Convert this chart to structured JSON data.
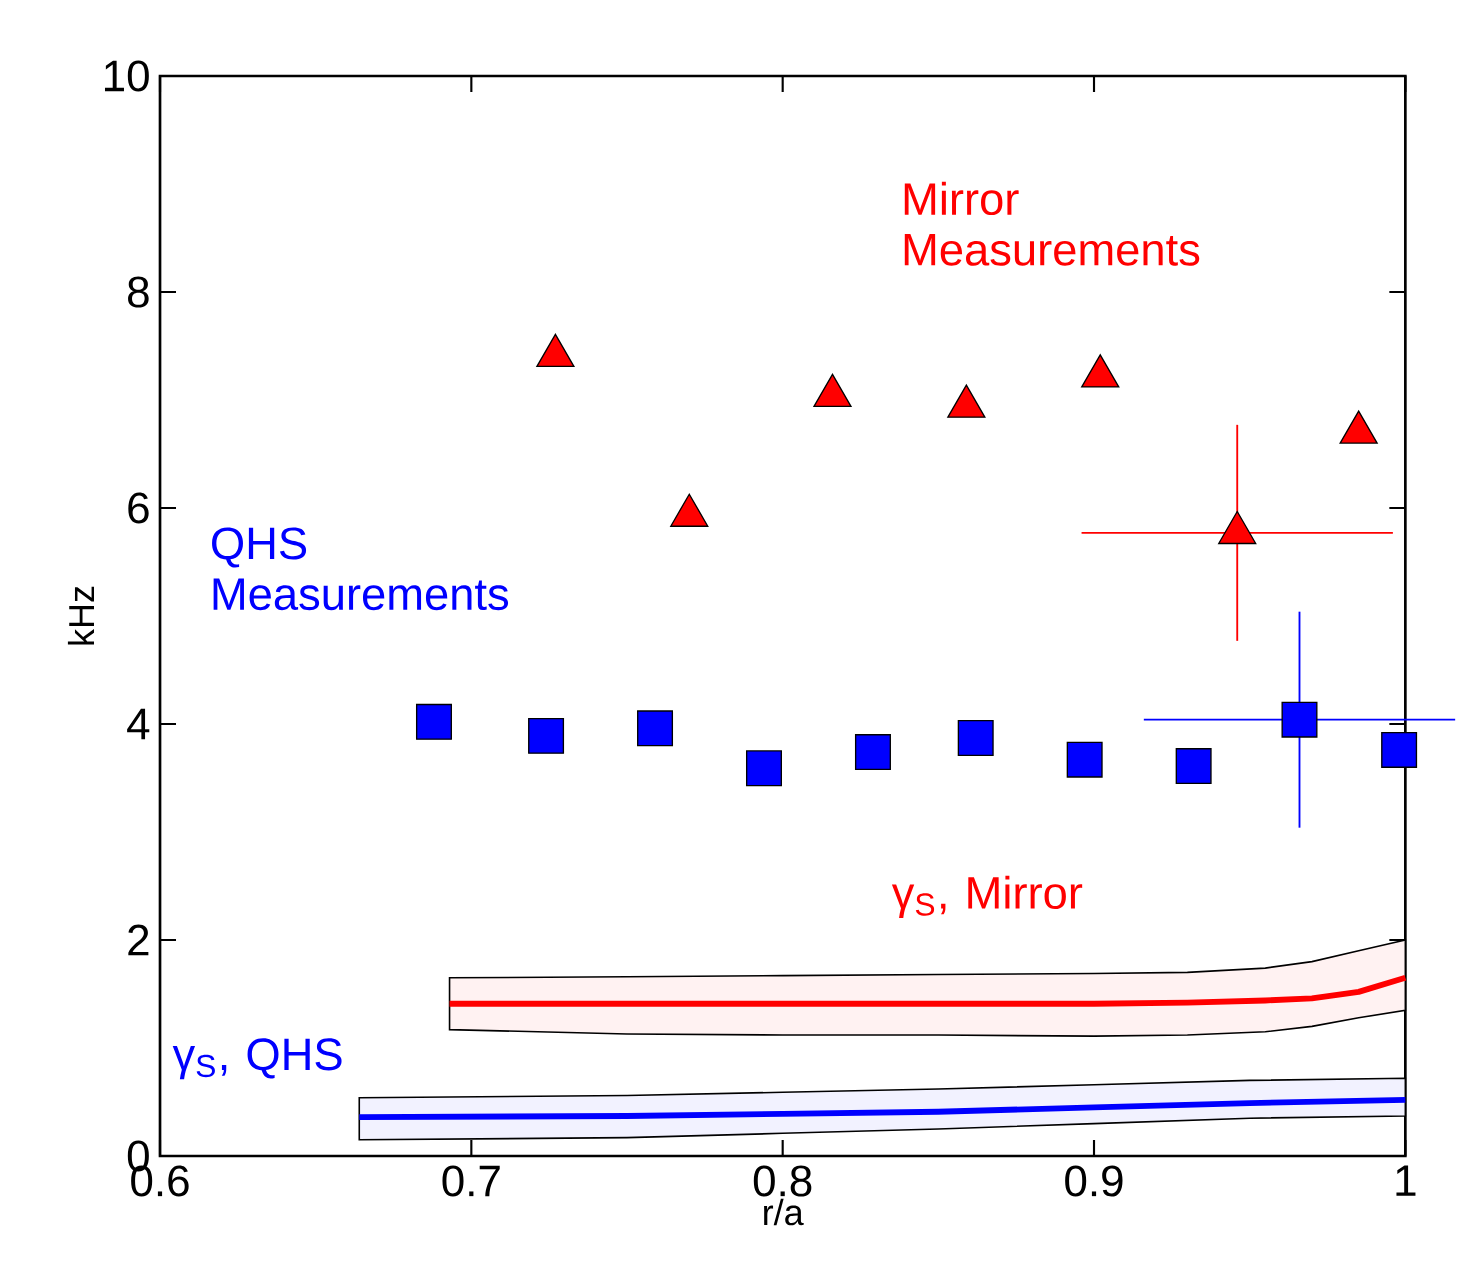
{
  "chart_data": {
    "type": "scatter",
    "xlabel": "r/a",
    "ylabel": "kHz",
    "xlim": [
      0.6,
      1
    ],
    "ylim": [
      0,
      10
    ],
    "xticks": [
      0.6,
      0.7,
      0.8,
      0.9,
      1
    ],
    "yticks": [
      0,
      2,
      4,
      6,
      8,
      10
    ],
    "grid": false,
    "legend": false,
    "series": [
      {
        "name": "Mirror Measurements",
        "marker": "triangle",
        "color": "#ff0000",
        "x": [
          0.727,
          0.77,
          0.816,
          0.859,
          0.902,
          0.946,
          0.985
        ],
        "values": [
          7.41,
          5.93,
          7.04,
          6.94,
          7.22,
          5.77,
          6.7
        ],
        "errors": [
          null,
          null,
          null,
          null,
          null,
          1.0,
          null
        ],
        "xerrors": [
          null,
          null,
          null,
          null,
          null,
          0.05,
          null
        ]
      },
      {
        "name": "QHS Measurements",
        "marker": "square",
        "color": "#0000ff",
        "x": [
          0.688,
          0.724,
          0.759,
          0.794,
          0.829,
          0.862,
          0.897,
          0.932,
          0.966,
          0.998
        ],
        "values": [
          4.02,
          3.89,
          3.96,
          3.59,
          3.74,
          3.87,
          3.67,
          3.61,
          4.04,
          3.76
        ],
        "errors": [
          null,
          null,
          null,
          null,
          null,
          null,
          null,
          null,
          1.0,
          null
        ],
        "xerrors": [
          null,
          null,
          null,
          null,
          null,
          null,
          null,
          null,
          0.05,
          null
        ]
      },
      {
        "name": "γ$_{S}$, Mirror",
        "type": "line",
        "color": "#ff0000",
        "x": [
          0.693,
          0.75,
          0.8,
          0.85,
          0.9,
          0.93,
          0.955,
          0.97,
          0.985,
          1.0
        ],
        "values": [
          1.41,
          1.41,
          1.41,
          1.41,
          1.41,
          1.42,
          1.44,
          1.46,
          1.52,
          1.65
        ],
        "lower": [
          1.17,
          1.13,
          1.12,
          1.12,
          1.11,
          1.12,
          1.15,
          1.2,
          1.28,
          1.35
        ],
        "upper": [
          1.65,
          1.66,
          1.67,
          1.68,
          1.69,
          1.7,
          1.74,
          1.8,
          1.9,
          2.0
        ]
      },
      {
        "name": "γ$_{S}$, QHS",
        "type": "line",
        "color": "#0000ff",
        "x": [
          0.664,
          0.75,
          0.8,
          0.85,
          0.9,
          0.95,
          1.0
        ],
        "values": [
          0.36,
          0.37,
          0.39,
          0.41,
          0.45,
          0.49,
          0.52
        ],
        "lower": [
          0.15,
          0.17,
          0.21,
          0.25,
          0.3,
          0.35,
          0.37
        ],
        "upper": [
          0.54,
          0.56,
          0.59,
          0.62,
          0.66,
          0.7,
          0.72
        ]
      }
    ]
  }
}
